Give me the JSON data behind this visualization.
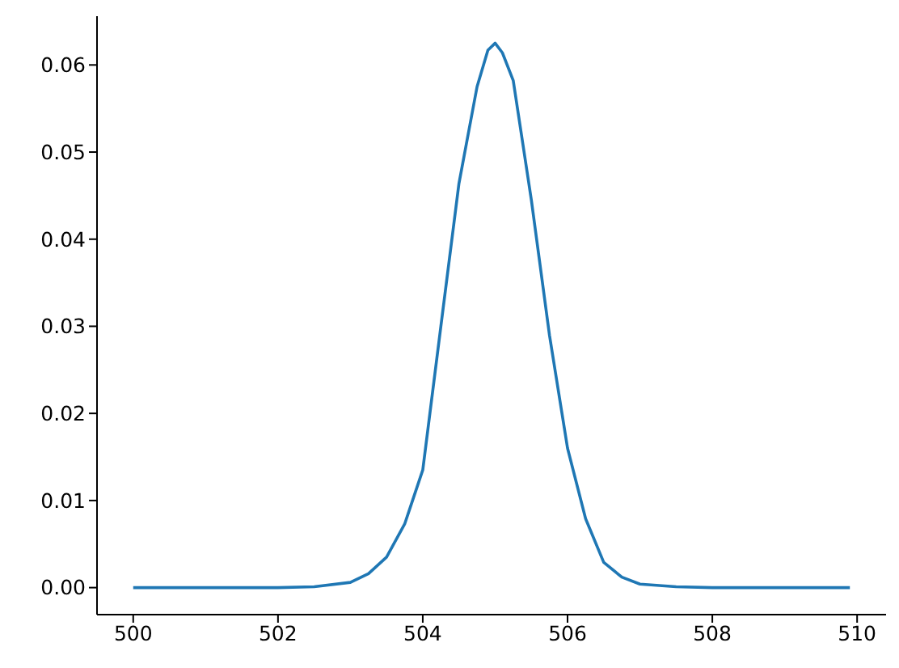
{
  "chart_data": {
    "type": "line",
    "x": [
      500,
      501,
      502,
      502.5,
      503,
      503.25,
      503.5,
      503.75,
      504,
      504.25,
      504.5,
      504.75,
      504.9,
      505,
      505.1,
      505.25,
      505.5,
      505.75,
      506,
      506.25,
      506.5,
      506.75,
      507,
      507.5,
      508,
      509,
      509.9
    ],
    "series": [
      {
        "color": "#1f77b4",
        "values": [
          0,
          0,
          0,
          0.0001,
          0.0006,
          0.0016,
          0.0035,
          0.0073,
          0.0135,
          0.03,
          0.0464,
          0.0575,
          0.0617,
          0.0625,
          0.0614,
          0.0582,
          0.0445,
          0.029,
          0.016,
          0.0079,
          0.0029,
          0.0012,
          0.0004,
          0.0001,
          0,
          0,
          0
        ]
      }
    ],
    "xlim": [
      499.5,
      510.4
    ],
    "ylim": [
      -0.0031,
      0.0656
    ],
    "xticks": [
      500,
      502,
      504,
      506,
      508,
      510
    ],
    "yticks": [
      {
        "value": 0,
        "label": "0.00"
      },
      {
        "value": 0.01,
        "label": "0.01"
      },
      {
        "value": 0.02,
        "label": "0.02"
      },
      {
        "value": 0.03,
        "label": "0.03"
      },
      {
        "value": 0.04,
        "label": "0.04"
      },
      {
        "value": 0.05,
        "label": "0.05"
      },
      {
        "value": 0.06,
        "label": "0.06"
      }
    ],
    "marker": "none",
    "line_style": "solid",
    "grid": false,
    "legend": false
  }
}
